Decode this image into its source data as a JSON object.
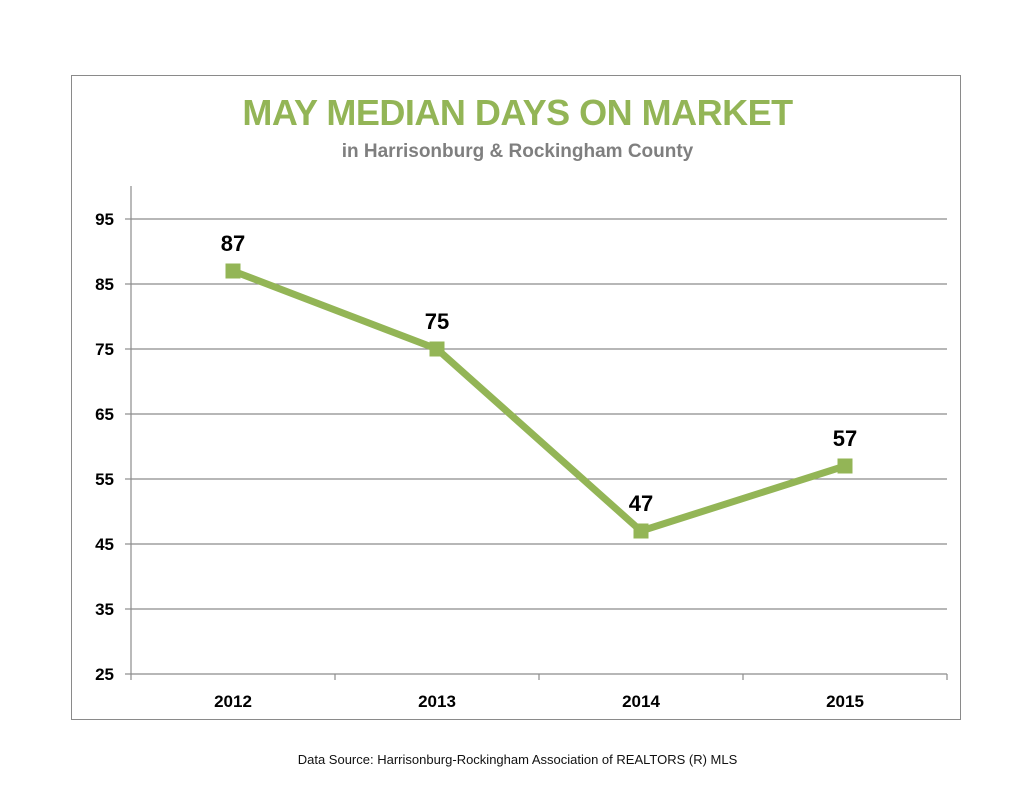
{
  "colors": {
    "series": "#93b556",
    "title": "#93b556",
    "subtitle": "#7f7f7f",
    "grid": "#8c8c8c"
  },
  "footer": {
    "source": "Data Source: Harrisonburg-Rockingham Association of REALTORS (R) MLS"
  },
  "chart_data": {
    "type": "line",
    "title": "MAY MEDIAN DAYS ON MARKET",
    "subtitle": "in Harrisonburg  & Rockingham County",
    "categories": [
      "2012",
      "2013",
      "2014",
      "2015"
    ],
    "series": [
      {
        "values": [
          87,
          75,
          47,
          57
        ],
        "marker": "square",
        "data_labels": true
      }
    ],
    "ylim": [
      25,
      95
    ],
    "yticks": [
      25,
      35,
      45,
      55,
      65,
      75,
      85,
      95
    ],
    "grid": true,
    "legend": "none",
    "xlabel": "",
    "ylabel": ""
  }
}
